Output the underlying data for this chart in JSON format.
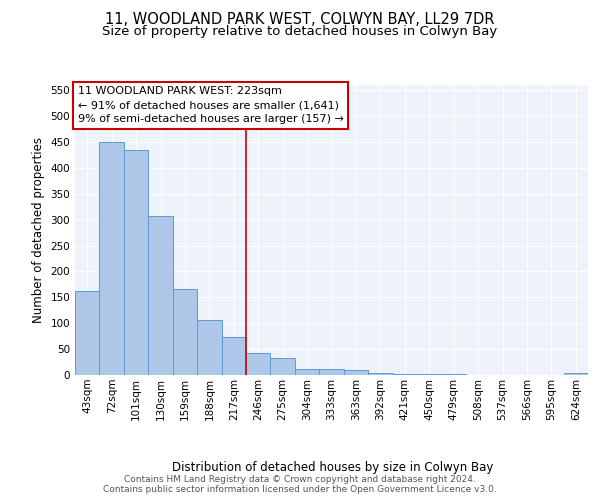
{
  "title1": "11, WOODLAND PARK WEST, COLWYN BAY, LL29 7DR",
  "title2": "Size of property relative to detached houses in Colwyn Bay",
  "xlabel": "Distribution of detached houses by size in Colwyn Bay",
  "ylabel": "Number of detached properties",
  "categories": [
    "43sqm",
    "72sqm",
    "101sqm",
    "130sqm",
    "159sqm",
    "188sqm",
    "217sqm",
    "246sqm",
    "275sqm",
    "304sqm",
    "333sqm",
    "363sqm",
    "392sqm",
    "421sqm",
    "450sqm",
    "479sqm",
    "508sqm",
    "537sqm",
    "566sqm",
    "595sqm",
    "624sqm"
  ],
  "values": [
    163,
    450,
    435,
    307,
    167,
    107,
    73,
    43,
    33,
    12,
    11,
    9,
    4,
    2,
    1,
    1,
    0,
    0,
    0,
    0,
    4
  ],
  "bar_color": "#aec6e8",
  "bar_edge_color": "#5b9bd5",
  "property_line_x": 6,
  "property_line_label": "11 WOODLAND PARK WEST: 223sqm",
  "annotation_line1": "← 91% of detached houses are smaller (1,641)",
  "annotation_line2": "9% of semi-detached houses are larger (157) →",
  "vline_color": "#cc0000",
  "annotation_box_edge": "#cc0000",
  "annotation_box_face": "#ffffff",
  "ylim": [
    0,
    560
  ],
  "yticks": [
    0,
    50,
    100,
    150,
    200,
    250,
    300,
    350,
    400,
    450,
    500,
    550
  ],
  "footer": "Contains HM Land Registry data © Crown copyright and database right 2024.\nContains public sector information licensed under the Open Government Licence v3.0.",
  "background_color": "#eef2fb",
  "grid_color": "#ffffff",
  "title_fontsize": 10.5,
  "subtitle_fontsize": 9.5,
  "axis_label_fontsize": 8.5,
  "tick_fontsize": 7.5,
  "annotation_fontsize": 8,
  "footer_fontsize": 6.5
}
